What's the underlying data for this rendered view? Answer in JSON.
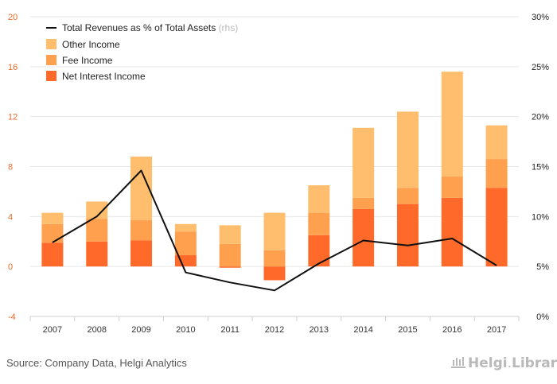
{
  "chart_data": {
    "type": "bar",
    "stacked": true,
    "categories": [
      "2007",
      "2008",
      "2009",
      "2010",
      "2011",
      "2012",
      "2013",
      "2014",
      "2015",
      "2016",
      "2017"
    ],
    "series": [
      {
        "name": "Net Interest Income",
        "color": "#ff6a2a",
        "values": [
          1.9,
          2.0,
          2.1,
          0.9,
          -0.1,
          -1.1,
          2.5,
          4.6,
          5.0,
          5.5,
          6.3
        ]
      },
      {
        "name": "Fee Income",
        "color": "#ffa04f",
        "values": [
          1.5,
          1.8,
          1.6,
          1.9,
          1.8,
          1.3,
          1.8,
          0.9,
          1.3,
          1.7,
          2.3
        ]
      },
      {
        "name": "Other Income",
        "color": "#ffbe6d",
        "values": [
          0.9,
          1.4,
          5.1,
          0.6,
          1.5,
          3.0,
          2.2,
          5.6,
          6.1,
          8.4,
          2.7
        ]
      }
    ],
    "line_series": {
      "name": "Total Revenues as % of Total Assets",
      "name_suffix": "(rhs)",
      "axis": "right",
      "color": "#111111",
      "values": [
        7.4,
        10.0,
        14.6,
        4.4,
        3.4,
        2.6,
        5.3,
        7.6,
        7.1,
        7.8,
        5.1
      ]
    },
    "y_left": {
      "min": -4,
      "max": 20,
      "ticks": [
        "-4",
        "0",
        "4",
        "8",
        "12",
        "16",
        "20"
      ],
      "tick_values": [
        -4,
        0,
        4,
        8,
        12,
        16,
        20
      ]
    },
    "y_right": {
      "min": 0,
      "max": 30,
      "ticks": [
        "0%",
        "5%",
        "10%",
        "15%",
        "20%",
        "25%",
        "30%"
      ],
      "tick_values": [
        0,
        5,
        10,
        15,
        20,
        25,
        30
      ]
    },
    "grid": true,
    "legend_position": "top-left"
  },
  "source_text": "Source: Company Data, Helgi Analytics",
  "logo": {
    "brand": "Helgi",
    "dot": ".",
    "suffix": "Library"
  }
}
